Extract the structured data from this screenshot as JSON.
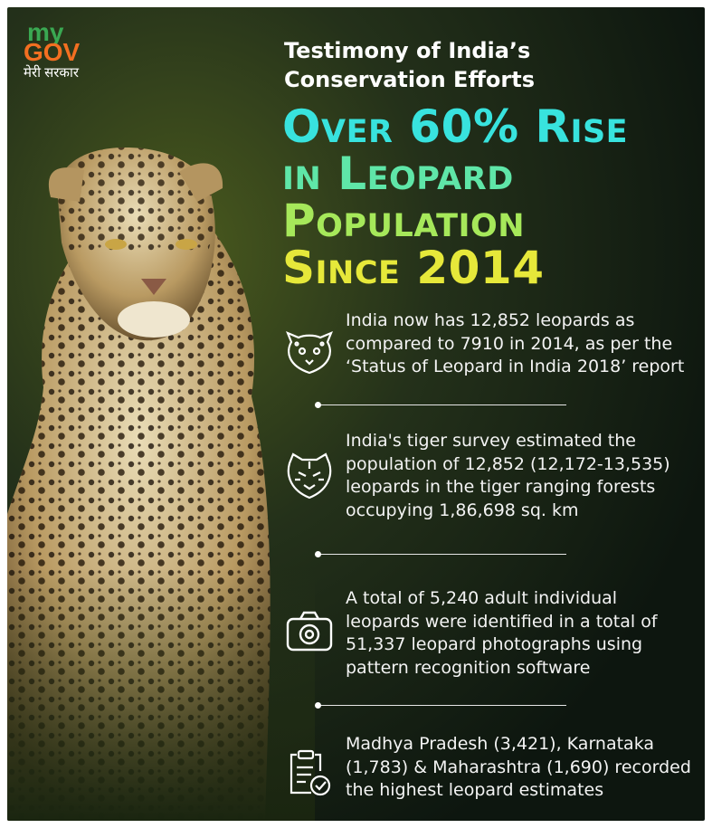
{
  "logo": {
    "my": "my",
    "gov": "GOV",
    "tagline": "मेरी सरकार"
  },
  "header": {
    "subtitle_lines": [
      "Testimony of India’s",
      "Conservation Efforts"
    ],
    "headline_lines": [
      "Over 60% Rise",
      "in Leopard",
      "Population",
      "Since 2014"
    ]
  },
  "facts": [
    {
      "lines": [
        "India now has 12,852 leopards as",
        "compared to 7910 in 2014, as per the",
        "‘Status of Leopard in India 2018’ report"
      ]
    },
    {
      "lines": [
        "India's tiger survey estimated the",
        "population of 12,852 (12,172-13,535)",
        "leopards in the tiger ranging forests",
        "occupying 1,86,698 sq. km"
      ]
    },
    {
      "lines": [
        "A total of 5,240 adult individual",
        "leopards were identified in a total of",
        "51,337 leopard photographs using",
        "pattern recognition software"
      ]
    },
    {
      "lines": [
        "Madhya Pradesh (3,421), Karnataka",
        "(1,783) & Maharashtra (1,690) recorded",
        "the highest leopard estimates"
      ]
    }
  ]
}
